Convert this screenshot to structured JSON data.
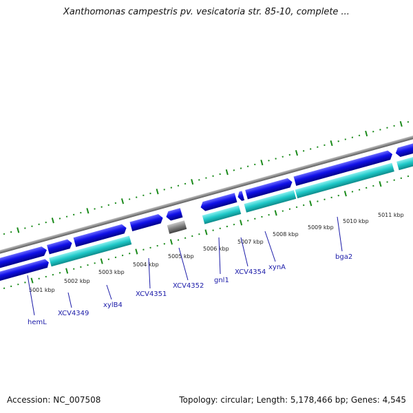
{
  "title": "Xanthomonas campestris pv. vesicatoria str. 85-10, complete ...",
  "footer": {
    "accession": "Accession: NC_007508",
    "stats": "Topology: circular; Length: 5,178,466 bp; Genes: 4,545"
  },
  "colors": {
    "gene_forward": "#1010e8",
    "cds": "#1ec8c8",
    "backbone": "#8a8a8a",
    "ticks": "#1a8a1a",
    "label": "#1a1aa8"
  },
  "kbp_ticks": [
    "5001 kbp",
    "5002 kbp",
    "5003 kbp",
    "5004 kbp",
    "5005 kbp",
    "5006 kbp",
    "5007 kbp",
    "5008 kbp",
    "5009 kbp",
    "5010 kbp",
    "5011 kbp"
  ],
  "gene_labels": [
    "hemL",
    "XCV4349",
    "xylB4",
    "XCV4351",
    "XCV4352",
    "gnl1",
    "XCV4354",
    "xynA",
    "bga2"
  ]
}
